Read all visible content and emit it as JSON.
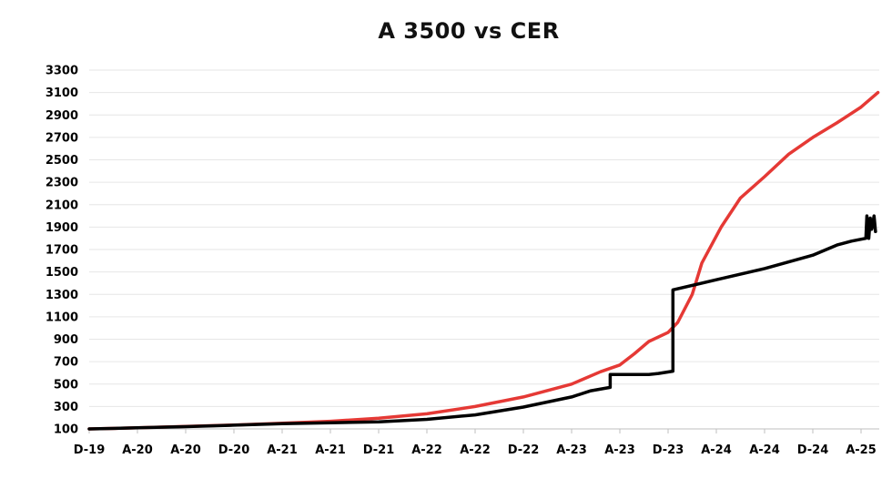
{
  "chart_data": {
    "type": "line",
    "title": "A 3500 vs CER",
    "xlabel": "",
    "ylabel": "",
    "ylim": [
      100,
      3300
    ],
    "y_ticks": [
      100,
      300,
      500,
      700,
      900,
      1100,
      1300,
      1500,
      1700,
      1900,
      2100,
      2300,
      2500,
      2700,
      2900,
      3100,
      3300
    ],
    "x_tick_labels": [
      "D-19",
      "A-20",
      "A-20",
      "D-20",
      "A-21",
      "A-21",
      "D-21",
      "A-22",
      "A-22",
      "D-22",
      "A-23",
      "A-23",
      "D-23",
      "A-24",
      "A-24",
      "D-24",
      "A-25"
    ],
    "x_range": [
      0,
      16.3
    ],
    "grid": true,
    "legend": "none",
    "series": [
      {
        "color": "#e53935",
        "points": [
          [
            0,
            100
          ],
          [
            1,
            110
          ],
          [
            2,
            122
          ],
          [
            3,
            135
          ],
          [
            4,
            150
          ],
          [
            5,
            168
          ],
          [
            6,
            195
          ],
          [
            7,
            235
          ],
          [
            8,
            300
          ],
          [
            9,
            385
          ],
          [
            10,
            500
          ],
          [
            10.6,
            610
          ],
          [
            11,
            670
          ],
          [
            11.3,
            770
          ],
          [
            11.6,
            880
          ],
          [
            12,
            960
          ],
          [
            12.2,
            1050
          ],
          [
            12.5,
            1300
          ],
          [
            12.7,
            1580
          ],
          [
            13.1,
            1900
          ],
          [
            13.5,
            2160
          ],
          [
            14,
            2350
          ],
          [
            14.5,
            2550
          ],
          [
            15,
            2700
          ],
          [
            15.5,
            2830
          ],
          [
            16,
            2970
          ],
          [
            16.35,
            3100
          ]
        ]
      },
      {
        "color": "#000000",
        "points": [
          [
            0,
            100
          ],
          [
            1,
            110
          ],
          [
            2,
            120
          ],
          [
            3,
            133
          ],
          [
            4,
            146
          ],
          [
            5,
            155
          ],
          [
            6,
            163
          ],
          [
            7,
            185
          ],
          [
            8,
            225
          ],
          [
            9,
            295
          ],
          [
            10,
            385
          ],
          [
            10.4,
            440
          ],
          [
            10.8,
            470
          ],
          [
            10.8,
            585
          ],
          [
            11.6,
            585
          ],
          [
            11.8,
            595
          ],
          [
            12.1,
            615
          ],
          [
            12.1,
            1340
          ],
          [
            13,
            1430
          ],
          [
            14,
            1530
          ],
          [
            15,
            1650
          ],
          [
            15.5,
            1740
          ],
          [
            15.8,
            1775
          ],
          [
            16.1,
            1800
          ],
          [
            16.12,
            2000
          ],
          [
            16.16,
            1800
          ],
          [
            16.19,
            1980
          ],
          [
            16.22,
            1880
          ],
          [
            16.27,
            2000
          ],
          [
            16.3,
            1860
          ]
        ]
      }
    ]
  }
}
